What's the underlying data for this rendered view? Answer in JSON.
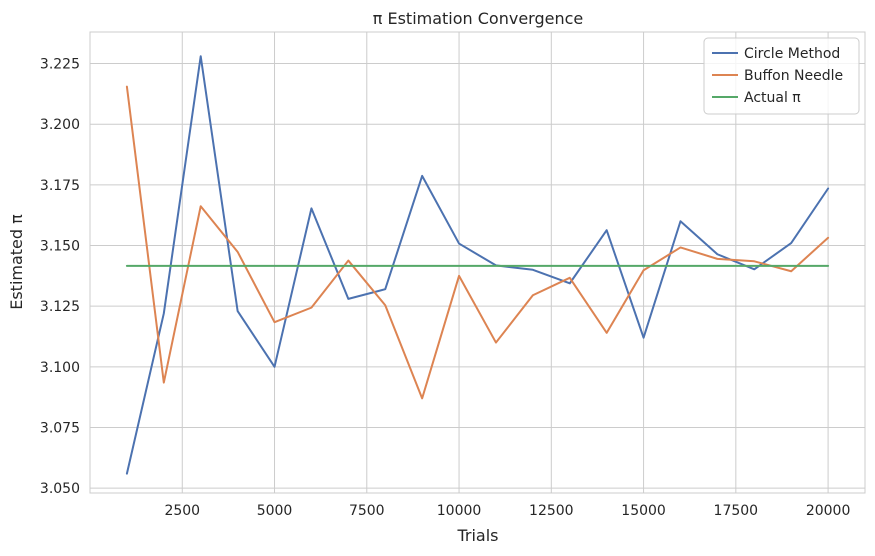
{
  "chart_data": {
    "type": "line",
    "title": "π Estimation Convergence",
    "xlabel": "Trials",
    "ylabel": "Estimated π",
    "xlim": [
      0,
      21000
    ],
    "ylim": [
      3.048,
      3.238
    ],
    "xticks": [
      2500,
      5000,
      7500,
      10000,
      12500,
      15000,
      17500,
      20000
    ],
    "xtick_labels": [
      "2500",
      "5000",
      "7500",
      "10000",
      "12500",
      "15000",
      "17500",
      "20000"
    ],
    "yticks": [
      3.05,
      3.075,
      3.1,
      3.125,
      3.15,
      3.175,
      3.2,
      3.225
    ],
    "ytick_labels": [
      "3.050",
      "3.075",
      "3.100",
      "3.125",
      "3.150",
      "3.175",
      "3.200",
      "3.225"
    ],
    "grid": true,
    "legend_position": "top-right",
    "x": [
      1000,
      2000,
      3000,
      4000,
      5000,
      6000,
      7000,
      8000,
      9000,
      10000,
      11000,
      12000,
      13000,
      14000,
      15000,
      16000,
      17000,
      18000,
      19000,
      20000
    ],
    "series": [
      {
        "name": "Circle Method",
        "color": "#4c72b0",
        "values": [
          3.056,
          3.122,
          3.228,
          3.123,
          3.1,
          3.1653,
          3.128,
          3.132,
          3.1787,
          3.1508,
          3.1418,
          3.14,
          3.1344,
          3.1563,
          3.112,
          3.16,
          3.1464,
          3.1402,
          3.151,
          3.1735
        ]
      },
      {
        "name": "Buffon Needle",
        "color": "#dd8452",
        "values": [
          3.2155,
          3.0935,
          3.1662,
          3.1474,
          3.1184,
          3.1244,
          3.1438,
          3.1254,
          3.087,
          3.1375,
          3.11,
          3.1295,
          3.1367,
          3.114,
          3.1398,
          3.1492,
          3.1445,
          3.1435,
          3.1394,
          3.1532
        ]
      },
      {
        "name": "Actual π",
        "color": "#55a868",
        "values": [
          3.14159,
          3.14159,
          3.14159,
          3.14159,
          3.14159,
          3.14159,
          3.14159,
          3.14159,
          3.14159,
          3.14159,
          3.14159,
          3.14159,
          3.14159,
          3.14159,
          3.14159,
          3.14159,
          3.14159,
          3.14159,
          3.14159,
          3.14159
        ]
      }
    ]
  }
}
